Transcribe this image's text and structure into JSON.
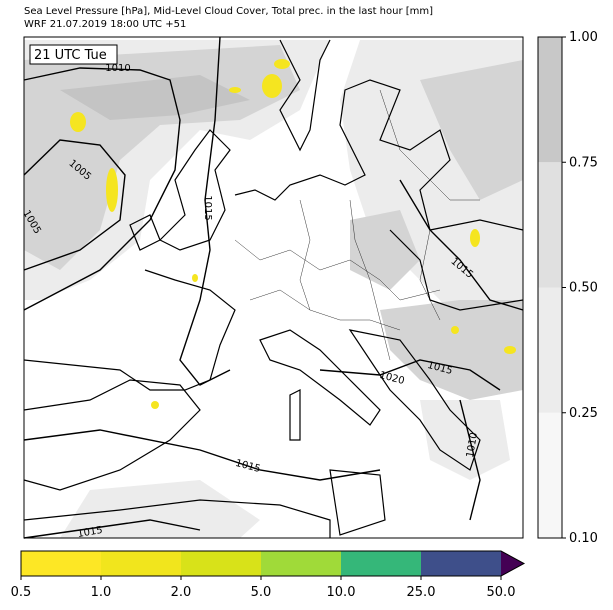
{
  "header": {
    "line1": "Sea Level Pressure [hPa], Mid-Level Cloud Cover, Total prec. in the last hour [mm]",
    "line2": "WRF 21.07.2019 18:00 UTC +51"
  },
  "map": {
    "time_label": "21 UTC Tue",
    "isobar_labels": [
      "1010",
      "1005",
      "1005",
      "1015",
      "1015",
      "1020",
      "1015",
      "1010",
      "1015",
      "1015"
    ]
  },
  "cloud_colorbar": {
    "ticks": [
      "0.10",
      "0.25",
      "0.50",
      "0.75",
      "1.00"
    ],
    "colors": [
      "#f7f7f7",
      "#ececec",
      "#e0e0e0",
      "#c8c8c8"
    ]
  },
  "precip_colorbar": {
    "ticks": [
      "0.5",
      "1.0",
      "2.0",
      "5.0",
      "10.0",
      "25.0",
      "50.0"
    ],
    "colors": [
      "#fde725",
      "#f1e51d",
      "#d8e219",
      "#a0da39",
      "#35b779",
      "#3e4f8a"
    ],
    "extend_color": "#440154"
  }
}
